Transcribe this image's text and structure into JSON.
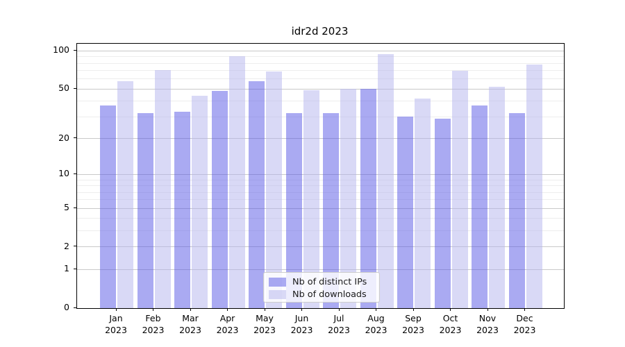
{
  "chart_data": {
    "type": "bar",
    "title": "idr2d 2023",
    "x_labels": [
      "Jan\n2023",
      "Feb\n2023",
      "Mar\n2023",
      "Apr\n2023",
      "May\n2023",
      "Jun\n2023",
      "Jul\n2023",
      "Aug\n2023",
      "Sep\n2023",
      "Oct\n2023",
      "Nov\n2023",
      "Dec\n2023"
    ],
    "series": [
      {
        "name": "Nb of distinct IPs",
        "color": "rgba(85,85,230,0.5)",
        "values": [
          37,
          32,
          33,
          48,
          58,
          32,
          32,
          50,
          30,
          29,
          37,
          32
        ]
      },
      {
        "name": "Nb of downloads",
        "color": "rgba(180,180,237,0.5)",
        "values": [
          58,
          71,
          44,
          91,
          69,
          49,
          50,
          94,
          42,
          70,
          52,
          78
        ]
      }
    ],
    "y_axis": {
      "scale": "log1p",
      "tick_labels": [
        "0",
        "1",
        "2",
        "5",
        "10",
        "20",
        "50",
        "100"
      ],
      "ticks": [
        0,
        1,
        2,
        5,
        10,
        20,
        50,
        100
      ],
      "minor_gridlines": [
        3,
        4,
        6,
        7,
        8,
        9,
        30,
        40,
        60,
        70,
        80,
        90
      ],
      "ylim": [
        0,
        120
      ]
    },
    "legend": {
      "position": "lower-center"
    },
    "grid": "both"
  }
}
